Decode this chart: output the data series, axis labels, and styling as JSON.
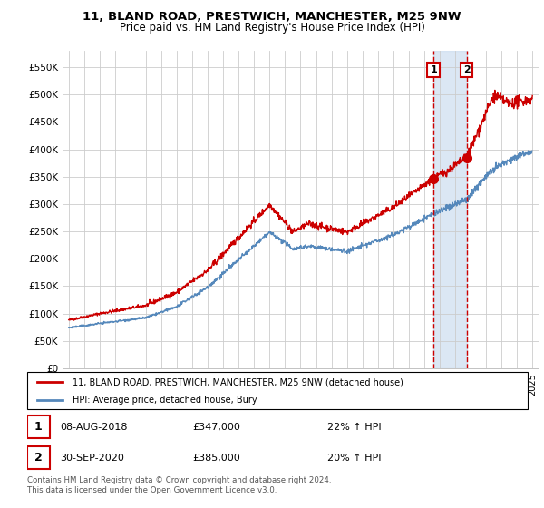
{
  "title1": "11, BLAND ROAD, PRESTWICH, MANCHESTER, M25 9NW",
  "title2": "Price paid vs. HM Land Registry's House Price Index (HPI)",
  "legend_label1": "11, BLAND ROAD, PRESTWICH, MANCHESTER, M25 9NW (detached house)",
  "legend_label2": "HPI: Average price, detached house, Bury",
  "annotation1_date": "08-AUG-2018",
  "annotation1_price": "£347,000",
  "annotation1_hpi": "22% ↑ HPI",
  "annotation2_date": "30-SEP-2020",
  "annotation2_price": "£385,000",
  "annotation2_hpi": "20% ↑ HPI",
  "footer": "Contains HM Land Registry data © Crown copyright and database right 2024.\nThis data is licensed under the Open Government Licence v3.0.",
  "red_color": "#cc0000",
  "blue_color": "#5588bb",
  "blue_fill_color": "#ccddf0",
  "grid_color": "#cccccc",
  "annotation_box_color": "#cc0000",
  "ylim": [
    0,
    580000
  ],
  "ytick_values": [
    0,
    50000,
    100000,
    150000,
    200000,
    250000,
    300000,
    350000,
    400000,
    450000,
    500000,
    550000
  ],
  "ytick_labels": [
    "£0",
    "£50K",
    "£100K",
    "£150K",
    "£200K",
    "£250K",
    "£300K",
    "£350K",
    "£400K",
    "£450K",
    "£500K",
    "£550K"
  ],
  "point1_x": 2018.6,
  "point1_y": 347000,
  "point2_x": 2020.75,
  "point2_y": 385000,
  "xmin": 1995,
  "xmax": 2025
}
